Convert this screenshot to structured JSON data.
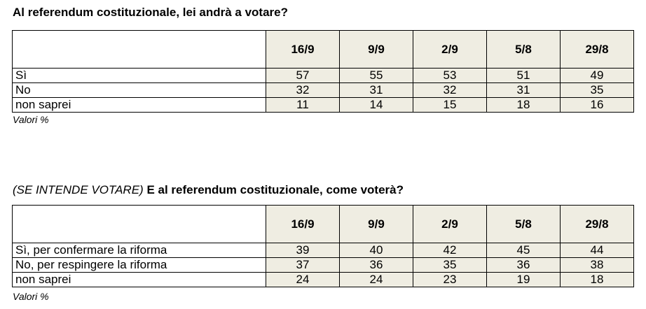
{
  "section1": {
    "title": "Al referendum costituzionale, lei andrà a votare?",
    "columns": [
      "16/9",
      "9/9",
      "2/9",
      "5/8",
      "29/8"
    ],
    "rows": [
      {
        "label": "Sì",
        "values": [
          "57",
          "55",
          "53",
          "51",
          "49"
        ]
      },
      {
        "label": "No",
        "values": [
          "32",
          "31",
          "32",
          "31",
          "35"
        ]
      },
      {
        "label": "non saprei",
        "values": [
          "11",
          "14",
          "15",
          "18",
          "16"
        ]
      }
    ],
    "note": "Valori %"
  },
  "section2": {
    "title_prefix": "(SE INTENDE VOTARE)",
    "title": "E al referendum costituzionale, come voterà?",
    "columns": [
      "16/9",
      "9/9",
      "2/9",
      "5/8",
      "29/8"
    ],
    "rows": [
      {
        "label": "Sì, per confermare la riforma",
        "values": [
          "39",
          "40",
          "42",
          "45",
          "44"
        ]
      },
      {
        "label": "No, per respingere la riforma",
        "values": [
          "37",
          "36",
          "35",
          "36",
          "38"
        ]
      },
      {
        "label": "non saprei",
        "values": [
          "24",
          "24",
          "23",
          "19",
          "18"
        ]
      }
    ],
    "note": "Valori %"
  },
  "colors": {
    "cell_background": "#efede2",
    "border": "#000000"
  }
}
